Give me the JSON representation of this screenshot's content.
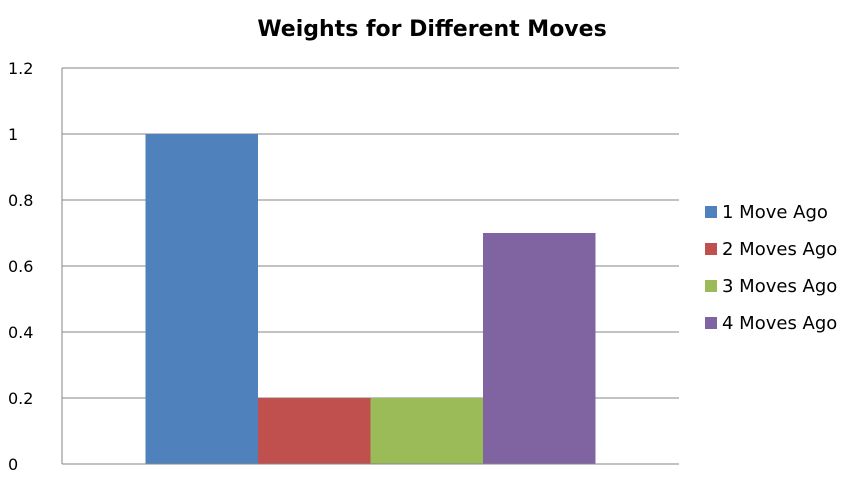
{
  "chart_data": {
    "type": "bar",
    "title": "Weights for Different Moves",
    "xlabel": "",
    "ylabel": "",
    "categories": [
      ""
    ],
    "ylim": [
      0,
      1.2
    ],
    "yticks": [
      "0",
      "0.2",
      "0.4",
      "0.6",
      "0.8",
      "1",
      "1.2"
    ],
    "grid": true,
    "legend_position": "right",
    "series": [
      {
        "name": "1 Move Ago",
        "values": [
          1.0
        ],
        "color": "#4F81BD"
      },
      {
        "name": "2 Moves Ago",
        "values": [
          0.2
        ],
        "color": "#C0504D"
      },
      {
        "name": "3 Moves Ago",
        "values": [
          0.2
        ],
        "color": "#9BBB59"
      },
      {
        "name": "4 Moves Ago",
        "values": [
          0.7
        ],
        "color": "#8064A2"
      }
    ]
  }
}
